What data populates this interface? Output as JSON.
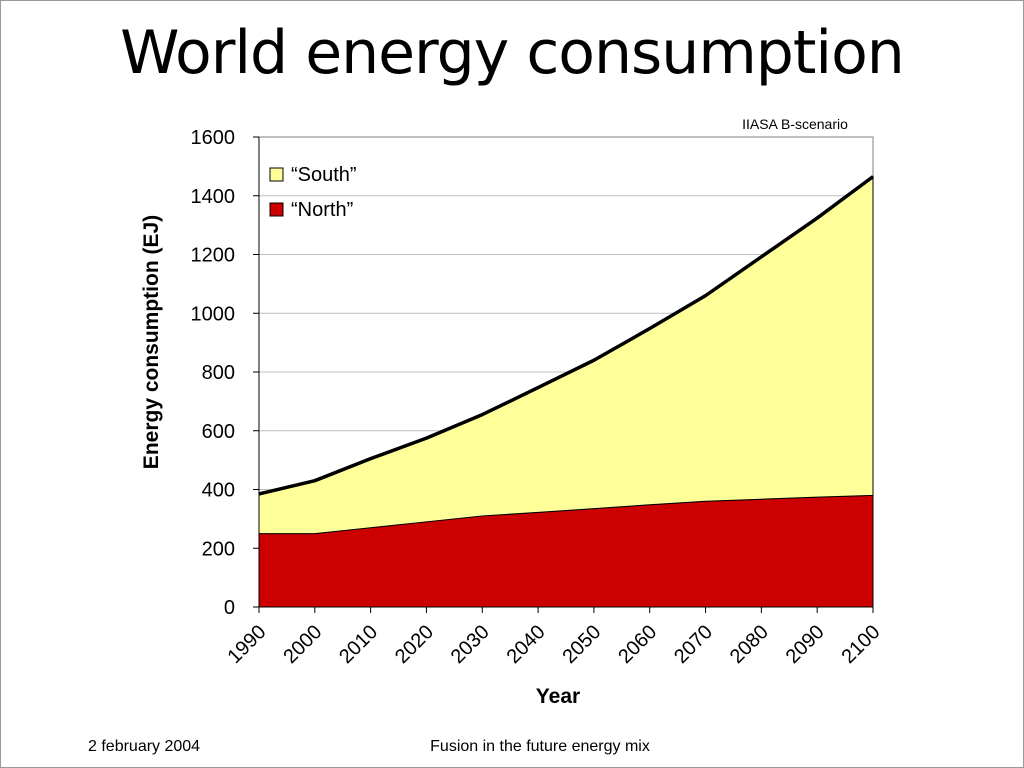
{
  "slide": {
    "title": "World energy consumption",
    "footer_date": "2 february 2004",
    "footer_subject": "Fusion in the future energy mix"
  },
  "chart_data": {
    "type": "area",
    "stacked": true,
    "annotation": "IIASA B-scenario",
    "xlabel": "Year",
    "ylabel": "Energy consumption (EJ)",
    "x": [
      1990,
      2000,
      2010,
      2020,
      2030,
      2040,
      2050,
      2060,
      2070,
      2080,
      2090,
      2100
    ],
    "xticks": [
      "1990",
      "2000",
      "2010",
      "2020",
      "2030",
      "2040",
      "2050",
      "2060",
      "2070",
      "2080",
      "2090",
      "2100"
    ],
    "ylim": [
      0,
      1600
    ],
    "yticks": [
      "0",
      "200",
      "400",
      "600",
      "800",
      "1000",
      "1200",
      "1400",
      "1600"
    ],
    "grid": true,
    "legend_position": "top-left",
    "series": [
      {
        "name": "“North”",
        "color": "#cc0000",
        "values": [
          250,
          250,
          270,
          290,
          310,
          322,
          335,
          348,
          360,
          367,
          374,
          380
        ]
      },
      {
        "name": "“South”",
        "color": "#ffff99",
        "values": [
          135,
          180,
          235,
          285,
          345,
          425,
          505,
          600,
          700,
          825,
          950,
          1085
        ]
      }
    ],
    "total_line_color": "#000000"
  }
}
